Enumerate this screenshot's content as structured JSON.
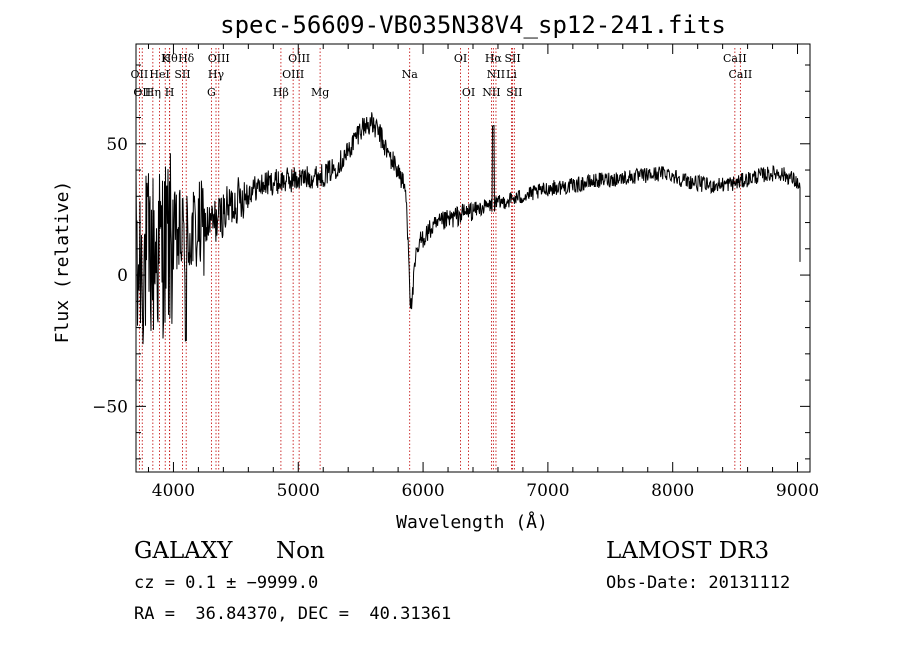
{
  "chart_data": {
    "type": "line",
    "title": "spec-56609-VB035N38V4_sp12-241.fits",
    "xlabel": "Wavelength (Å)",
    "ylabel": "Flux (relative)",
    "xlim": [
      3700,
      9100
    ],
    "ylim": [
      -75,
      88
    ],
    "xticks": [
      4000,
      5000,
      6000,
      7000,
      8000,
      9000
    ],
    "yticks": [
      -50,
      0,
      50
    ],
    "tick_labels": {
      "x": [
        "4000",
        "5000",
        "6000",
        "7000",
        "8000",
        "9000"
      ],
      "y": [
        "−50",
        "0",
        "50"
      ]
    },
    "line_color": "#000000",
    "marker_color": "#c00000",
    "lines": [
      {
        "wl": 3727,
        "label": "OII",
        "row": 2
      },
      {
        "wl": 3750,
        "label": "OII",
        "row": 3
      },
      {
        "wl": 3835,
        "label": "Hη",
        "row": 3
      },
      {
        "wl": 3889,
        "label": "HeI",
        "row": 2
      },
      {
        "wl": 3934,
        "label": "K",
        "row": 1
      },
      {
        "wl": 3969,
        "label": "H",
        "row": 3
      },
      {
        "wl": 4102,
        "label": "Hδ",
        "row": 1
      },
      {
        "wl": 4072,
        "label": "SII",
        "row": 2
      },
      {
        "wl": 3970,
        "label": "Hθ",
        "row": 1
      },
      {
        "wl": 4341,
        "label": "Hγ",
        "row": 2
      },
      {
        "wl": 4363,
        "label": "OIII",
        "row": 1
      },
      {
        "wl": 4304,
        "label": "G",
        "row": 3
      },
      {
        "wl": 4861,
        "label": "Hβ",
        "row": 3
      },
      {
        "wl": 4959,
        "label": "OIII",
        "row": 2
      },
      {
        "wl": 5007,
        "label": "OIII",
        "row": 1
      },
      {
        "wl": 5175,
        "label": "Mg",
        "row": 3
      },
      {
        "wl": 5893,
        "label": "Na",
        "row": 2
      },
      {
        "wl": 6300,
        "label": "OI",
        "row": 1
      },
      {
        "wl": 6364,
        "label": "OI",
        "row": 3
      },
      {
        "wl": 6548,
        "label": "NII",
        "row": 3
      },
      {
        "wl": 6563,
        "label": "Hα",
        "row": 1
      },
      {
        "wl": 6584,
        "label": "NII",
        "row": 2
      },
      {
        "wl": 6708,
        "label": "Li",
        "row": 2
      },
      {
        "wl": 6717,
        "label": "SII",
        "row": 1
      },
      {
        "wl": 6731,
        "label": "SII",
        "row": 3
      },
      {
        "wl": 8498,
        "label": "CaII",
        "row": 1
      },
      {
        "wl": 8542,
        "label": "CaII",
        "row": 2
      }
    ],
    "spectrum_anchors": [
      [
        3700,
        10
      ],
      [
        3760,
        5
      ],
      [
        3850,
        8
      ],
      [
        3950,
        12
      ],
      [
        4050,
        14
      ],
      [
        4150,
        16
      ],
      [
        4250,
        18
      ],
      [
        4350,
        21
      ],
      [
        4450,
        26
      ],
      [
        4550,
        30
      ],
      [
        4650,
        33
      ],
      [
        4750,
        35
      ],
      [
        4900,
        36
      ],
      [
        5050,
        37
      ],
      [
        5200,
        38
      ],
      [
        5300,
        41
      ],
      [
        5400,
        47
      ],
      [
        5500,
        56
      ],
      [
        5580,
        58
      ],
      [
        5650,
        54
      ],
      [
        5720,
        46
      ],
      [
        5800,
        40
      ],
      [
        5860,
        32
      ],
      [
        5885,
        10
      ],
      [
        5900,
        -14
      ],
      [
        5920,
        -5
      ],
      [
        5940,
        6
      ],
      [
        5980,
        13
      ],
      [
        6050,
        17
      ],
      [
        6150,
        20
      ],
      [
        6250,
        22
      ],
      [
        6350,
        24
      ],
      [
        6500,
        26
      ],
      [
        6650,
        28
      ],
      [
        6800,
        30
      ],
      [
        6950,
        32
      ],
      [
        7000,
        33
      ],
      [
        7200,
        34
      ],
      [
        7400,
        36
      ],
      [
        7600,
        37
      ],
      [
        7800,
        38
      ],
      [
        7950,
        39
      ],
      [
        8100,
        36
      ],
      [
        8300,
        34
      ],
      [
        8500,
        35
      ],
      [
        8700,
        38
      ],
      [
        8850,
        39
      ],
      [
        8950,
        37
      ],
      [
        9000,
        35
      ],
      [
        9020,
        32
      ]
    ]
  },
  "footer": {
    "object_class": "GALAXY",
    "subclass": "Non",
    "survey": "LAMOST DR3",
    "cz": "cz = 0.1 ± −9999.0",
    "obs_date": "Obs-Date: 20131112",
    "coords": "RA =  36.84370, DEC =  40.31361"
  }
}
